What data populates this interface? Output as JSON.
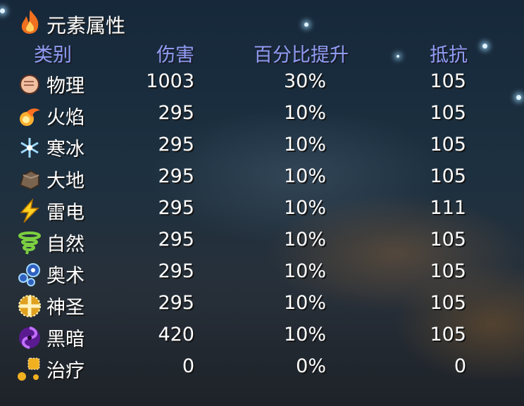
{
  "title": {
    "icon": "fire-icon",
    "text": "元素属性"
  },
  "headers": {
    "category": "类别",
    "damage": "伤害",
    "percent_boost": "百分比提升",
    "resistance": "抵抗"
  },
  "colors": {
    "header": "#8f9cf2",
    "text": "#ffffff"
  },
  "rows": [
    {
      "icon": "fist-icon",
      "name": "物理",
      "damage": "1003",
      "percent": "30%",
      "resist": "105"
    },
    {
      "icon": "fireball-icon",
      "name": "火焰",
      "damage": "295",
      "percent": "10%",
      "resist": "105"
    },
    {
      "icon": "snowflake-icon",
      "name": "寒冰",
      "damage": "295",
      "percent": "10%",
      "resist": "105"
    },
    {
      "icon": "rock-icon",
      "name": "大地",
      "damage": "295",
      "percent": "10%",
      "resist": "105"
    },
    {
      "icon": "lightning-icon",
      "name": "雷电",
      "damage": "295",
      "percent": "10%",
      "resist": "111"
    },
    {
      "icon": "tornado-icon",
      "name": "自然",
      "damage": "295",
      "percent": "10%",
      "resist": "105"
    },
    {
      "icon": "arcane-sparkle-icon",
      "name": "奥术",
      "damage": "295",
      "percent": "10%",
      "resist": "105"
    },
    {
      "icon": "holy-cross-icon",
      "name": "神圣",
      "damage": "295",
      "percent": "10%",
      "resist": "105"
    },
    {
      "icon": "dark-vortex-icon",
      "name": "黑暗",
      "damage": "420",
      "percent": "10%",
      "resist": "105"
    },
    {
      "icon": "heal-sparkle-icon",
      "name": "治疗",
      "damage": "0",
      "percent": "0%",
      "resist": "0"
    }
  ]
}
